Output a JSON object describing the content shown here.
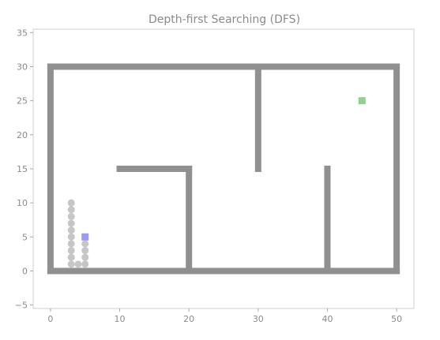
{
  "chart_data": {
    "type": "scatter",
    "title": "Depth-first Searching (DFS)",
    "xlabel": "",
    "ylabel": "",
    "xlim": [
      -2.5,
      52.5
    ],
    "ylim": [
      -5.5,
      35.5
    ],
    "x_ticks": [
      0,
      10,
      20,
      30,
      40,
      50
    ],
    "x_tick_labels": [
      "0",
      "10",
      "20",
      "30",
      "40",
      "50"
    ],
    "y_ticks": [
      -5,
      0,
      5,
      10,
      15,
      20,
      25,
      30,
      35
    ],
    "y_tick_labels": [
      "−5",
      "0",
      "5",
      "10",
      "15",
      "20",
      "25",
      "30",
      "35"
    ],
    "grid": false,
    "series": [
      {
        "role": "obstacles",
        "color": "#909090",
        "marker": "square",
        "segments": [
          {
            "from": [
              0,
              0
            ],
            "to": [
              50,
              0
            ]
          },
          {
            "from": [
              0,
              30
            ],
            "to": [
              50,
              30
            ]
          },
          {
            "from": [
              0,
              0
            ],
            "to": [
              0,
              30
            ]
          },
          {
            "from": [
              50,
              0
            ],
            "to": [
              50,
              30
            ]
          },
          {
            "from": [
              10,
              15
            ],
            "to": [
              20,
              15
            ]
          },
          {
            "from": [
              20,
              0
            ],
            "to": [
              20,
              15
            ]
          },
          {
            "from": [
              30,
              15
            ],
            "to": [
              30,
              30
            ]
          },
          {
            "from": [
              40,
              0
            ],
            "to": [
              40,
              15
            ]
          }
        ]
      },
      {
        "role": "visited",
        "color": "#c6c6c6",
        "marker": "circle",
        "points": [
          [
            3,
            1
          ],
          [
            3,
            2
          ],
          [
            3,
            3
          ],
          [
            3,
            4
          ],
          [
            3,
            5
          ],
          [
            3,
            6
          ],
          [
            3,
            7
          ],
          [
            3,
            8
          ],
          [
            3,
            9
          ],
          [
            3,
            10
          ],
          [
            4,
            1
          ],
          [
            5,
            1
          ],
          [
            5,
            2
          ],
          [
            5,
            3
          ],
          [
            5,
            4
          ]
        ]
      },
      {
        "role": "start",
        "color": "#9b9bf2",
        "marker": "square",
        "points": [
          [
            5,
            5
          ]
        ]
      },
      {
        "role": "goal",
        "color": "#90d090",
        "marker": "square",
        "points": [
          [
            45,
            25
          ]
        ]
      }
    ]
  }
}
